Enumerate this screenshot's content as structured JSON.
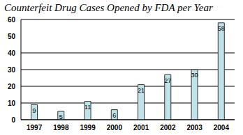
{
  "chart_data": {
    "type": "bar",
    "title": "Counterfeit Drug Cases Opened by FDA per Year",
    "categories": [
      "1997",
      "1998",
      "1999",
      "2000",
      "2001",
      "2002",
      "2003",
      "2004"
    ],
    "values": [
      9,
      5,
      11,
      6,
      21,
      27,
      30,
      58
    ],
    "color": "#bfe3e9",
    "ylim": [
      0,
      60
    ],
    "yticks": [
      0,
      10,
      20,
      30,
      40,
      50,
      60
    ],
    "grid": true,
    "data_labels": true
  }
}
